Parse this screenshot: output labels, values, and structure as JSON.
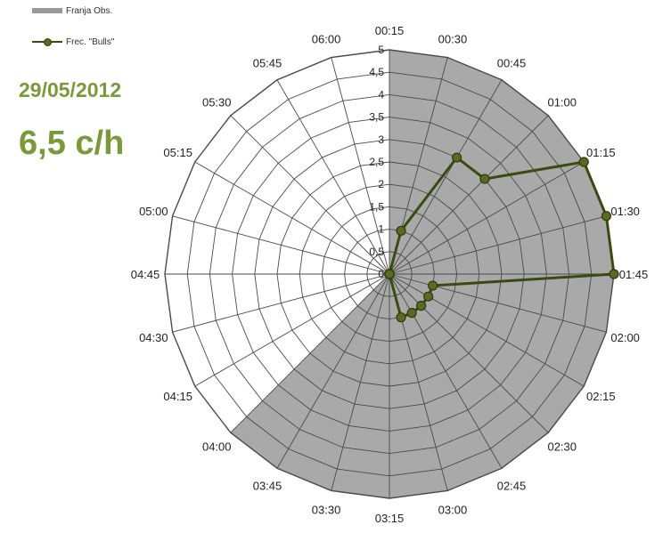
{
  "legend": {
    "shaded_label": "Franja Obs.",
    "series_label": "Frec. \"Bulls\""
  },
  "annotation": {
    "date": "29/05/2012",
    "rate": "6,5 c/h"
  },
  "colors": {
    "shade": "#a9a9a9",
    "series": "#3b4a12",
    "marker": "#5a6a22",
    "annotation": "#7a9a3a"
  },
  "chart_data": {
    "type": "radar",
    "title": "",
    "categories": [
      "00:15",
      "00:30",
      "00:45",
      "01:00",
      "01:15",
      "01:30",
      "01:45",
      "02:00",
      "02:15",
      "02:30",
      "02:45",
      "03:00",
      "03:15",
      "03:30",
      "03:45",
      "04:00",
      "04:15",
      "04:30",
      "04:45",
      "05:00",
      "05:15",
      "05:30",
      "05:45",
      "06:00"
    ],
    "radial_ticks": [
      "0",
      "0,5",
      "1",
      "1,5",
      "2",
      "2,5",
      "3",
      "3,5",
      "4",
      "4,5",
      "5"
    ],
    "rlim": [
      0,
      5
    ],
    "grid": true,
    "legend_position": "top-left",
    "shaded_band": {
      "name": "Franja Obs.",
      "value": 5,
      "from": "00:15",
      "to": "04:00"
    },
    "series": [
      {
        "name": "Frec. \"Bulls\"",
        "values": [
          0,
          1,
          3,
          3,
          5,
          5,
          5,
          1,
          1,
          1,
          1,
          1,
          0,
          0,
          0,
          0,
          0,
          0,
          0,
          0,
          0,
          0,
          0,
          0
        ]
      }
    ]
  }
}
